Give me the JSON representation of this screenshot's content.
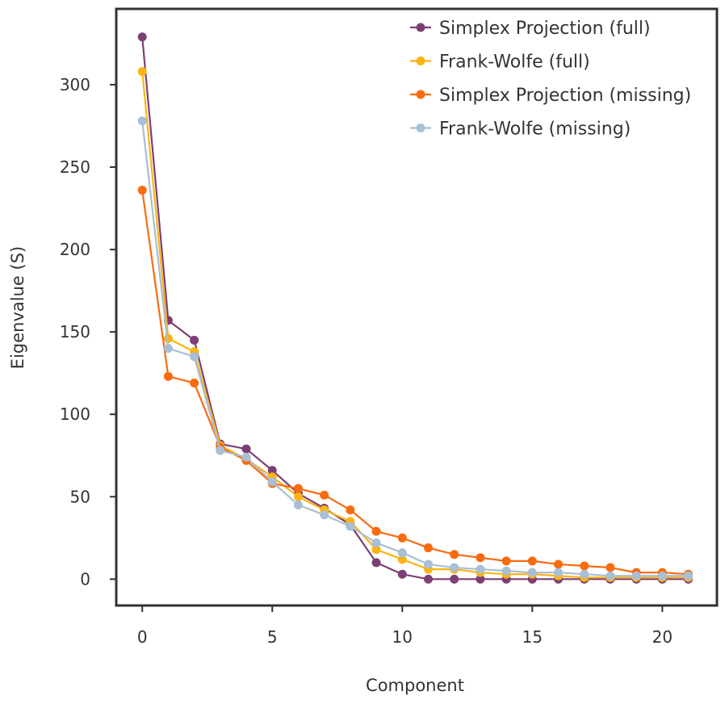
{
  "chart_data": {
    "type": "line",
    "title": "",
    "xlabel": "Component",
    "ylabel": "Eigenvalue (S)",
    "xlim": [
      -1,
      22.1
    ],
    "ylim": [
      -16,
      346
    ],
    "xticks": [
      0,
      5,
      10,
      15,
      20
    ],
    "yticks": [
      0,
      50,
      100,
      150,
      200,
      250,
      300
    ],
    "grid": false,
    "legend_position": "top-right",
    "x": [
      0,
      1,
      2,
      3,
      4,
      5,
      6,
      7,
      8,
      9,
      10,
      11,
      12,
      13,
      14,
      15,
      16,
      17,
      18,
      19,
      20,
      21
    ],
    "series": [
      {
        "name": "Simplex Projection (full)",
        "color": "#7d3f73",
        "values": [
          329,
          157,
          145,
          82,
          79,
          66,
          52,
          43,
          33,
          10,
          3,
          0,
          0,
          0,
          0,
          0,
          0,
          0,
          0,
          0,
          0,
          0
        ]
      },
      {
        "name": "Frank-Wolfe (full)",
        "color": "#fbb413",
        "values": [
          308,
          146,
          138,
          81,
          73,
          62,
          50,
          42,
          35,
          18,
          12,
          6,
          6,
          4,
          3,
          3,
          2,
          1,
          1,
          1,
          1,
          1
        ]
      },
      {
        "name": "Simplex Projection (missing)",
        "color": "#f96b0e",
        "values": [
          236,
          123,
          119,
          80,
          72,
          58,
          55,
          51,
          42,
          29,
          25,
          19,
          15,
          13,
          11,
          11,
          9,
          8,
          7,
          4,
          4,
          3
        ]
      },
      {
        "name": "Frank-Wolfe (missing)",
        "color": "#a8bfd6",
        "values": [
          278,
          140,
          135,
          78,
          74,
          59,
          45,
          39,
          32,
          22,
          16,
          9,
          7,
          6,
          5,
          4,
          4,
          3,
          2,
          2,
          2,
          2
        ]
      }
    ]
  }
}
